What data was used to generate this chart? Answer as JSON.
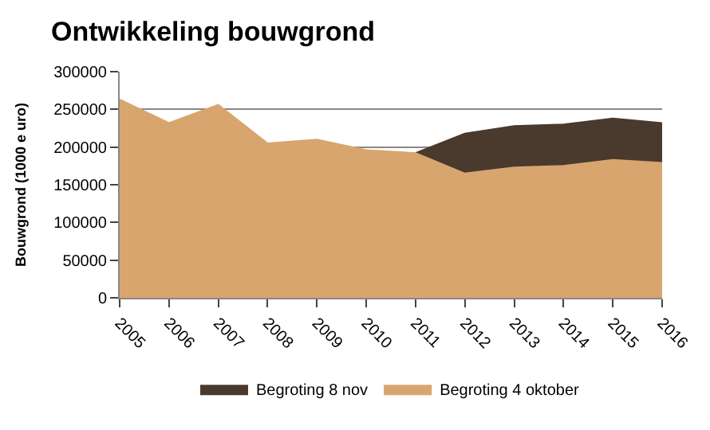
{
  "chart_data": {
    "type": "area",
    "title": "Ontwikkeling bouwgrond",
    "ylabel": "Bouwgrond (1000 e uro)",
    "categories": [
      "2005",
      "2006",
      "2007",
      "2008",
      "2009",
      "2010",
      "2011",
      "2012",
      "2013",
      "2014",
      "2015",
      "2016"
    ],
    "series": [
      {
        "name": "Begroting 8 nov",
        "color": "#4a3a2e",
        "values": [
          null,
          null,
          null,
          null,
          null,
          null,
          192000,
          218000,
          228000,
          230000,
          238000,
          232000
        ]
      },
      {
        "name": "Begroting 4 oktober",
        "color": "#d9a56e",
        "values": [
          263000,
          232000,
          256000,
          205000,
          210000,
          196000,
          192000,
          165000,
          173000,
          175000,
          183000,
          179000
        ]
      }
    ],
    "ylim": [
      0,
      300000
    ],
    "yticks": [
      0,
      50000,
      100000,
      150000,
      200000,
      250000,
      300000
    ],
    "grid": "y",
    "legend": "bottom"
  }
}
